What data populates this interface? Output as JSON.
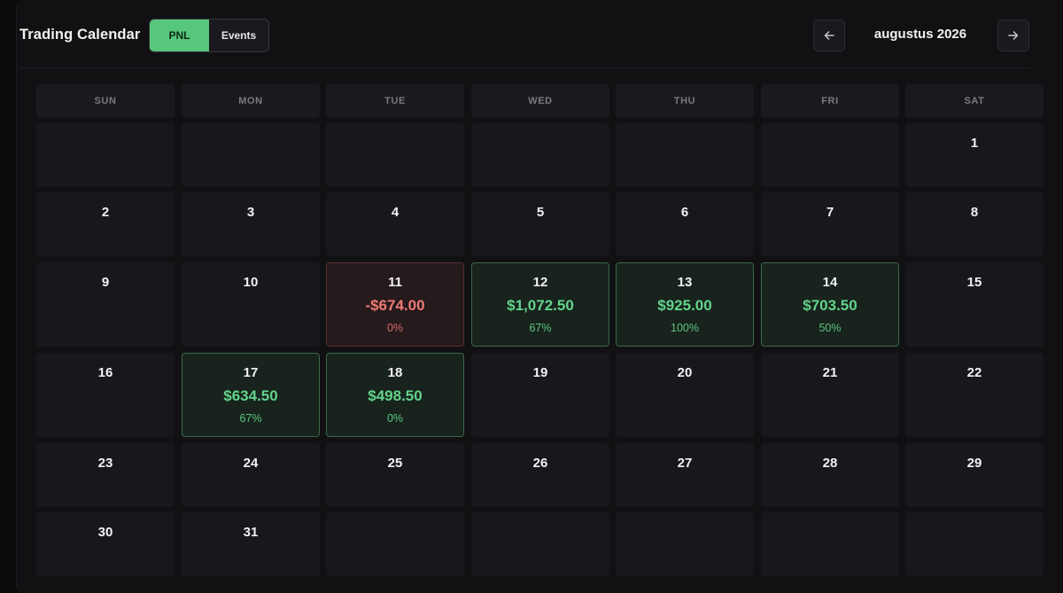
{
  "header": {
    "title": "Trading Calendar",
    "toggle": {
      "pnl_label": "PNL",
      "events_label": "Events",
      "active": "PNL"
    },
    "month_label": "augustus 2026",
    "prev_icon": "arrow-left-icon",
    "next_icon": "arrow-right-icon"
  },
  "weekdays": [
    "SUN",
    "MON",
    "TUE",
    "WED",
    "THU",
    "FRI",
    "SAT"
  ],
  "colors": {
    "gain": "#63d38a",
    "loss": "#ef7a74",
    "toggle_active": "#56c77c"
  },
  "weeks": [
    [
      null,
      null,
      null,
      null,
      null,
      null,
      {
        "day": "1"
      }
    ],
    [
      {
        "day": "2"
      },
      {
        "day": "3"
      },
      {
        "day": "4"
      },
      {
        "day": "5"
      },
      {
        "day": "6"
      },
      {
        "day": "7"
      },
      {
        "day": "8"
      }
    ],
    [
      {
        "day": "9"
      },
      {
        "day": "10"
      },
      {
        "day": "11",
        "pnl": "-$674.00",
        "pct": "0%",
        "status": "loss"
      },
      {
        "day": "12",
        "pnl": "$1,072.50",
        "pct": "67%",
        "status": "gain"
      },
      {
        "day": "13",
        "pnl": "$925.00",
        "pct": "100%",
        "status": "gain"
      },
      {
        "day": "14",
        "pnl": "$703.50",
        "pct": "50%",
        "status": "gain"
      },
      {
        "day": "15"
      }
    ],
    [
      {
        "day": "16"
      },
      {
        "day": "17",
        "pnl": "$634.50",
        "pct": "67%",
        "status": "gain"
      },
      {
        "day": "18",
        "pnl": "$498.50",
        "pct": "0%",
        "status": "gain"
      },
      {
        "day": "19"
      },
      {
        "day": "20"
      },
      {
        "day": "21"
      },
      {
        "day": "22"
      }
    ],
    [
      {
        "day": "23"
      },
      {
        "day": "24"
      },
      {
        "day": "25"
      },
      {
        "day": "26"
      },
      {
        "day": "27"
      },
      {
        "day": "28"
      },
      {
        "day": "29"
      }
    ],
    [
      {
        "day": "30"
      },
      {
        "day": "31"
      },
      null,
      null,
      null,
      null,
      null
    ]
  ]
}
